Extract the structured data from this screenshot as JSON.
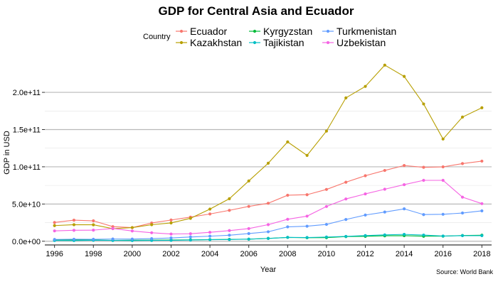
{
  "chart_data": {
    "type": "line",
    "title": "GDP for Central Asia and Ecuador",
    "xlabel": "Year",
    "ylabel": "GDP in USD",
    "caption": "Source: World Bank",
    "legend_title": "Country",
    "legend_position": "top",
    "grid": true,
    "xlim": [
      1995.5,
      2018.5
    ],
    "ylim": [
      -5000000000,
      243000000000
    ],
    "x_ticks": [
      1996,
      1998,
      2000,
      2002,
      2004,
      2006,
      2008,
      2010,
      2012,
      2014,
      2016,
      2018
    ],
    "x_tick_labels": [
      "1996",
      "1998",
      "2000",
      "2002",
      "2004",
      "2006",
      "2008",
      "2010",
      "2012",
      "2014",
      "2016",
      "2018"
    ],
    "y_ticks": [
      0,
      50000000000,
      100000000000,
      150000000000,
      200000000000
    ],
    "y_tick_labels": [
      "0.0e+00",
      "5.0e+10",
      "1.0e+11",
      "1.5e+11",
      "2.0e+11"
    ],
    "x": [
      1996,
      1997,
      1998,
      1999,
      2000,
      2001,
      2002,
      2003,
      2004,
      2005,
      2006,
      2007,
      2008,
      2009,
      2010,
      2011,
      2012,
      2013,
      2014,
      2015,
      2016,
      2017,
      2018
    ],
    "series": [
      {
        "name": "Ecuador",
        "color": "#F8766D",
        "values": [
          25200000000,
          28300000000,
          27400000000,
          19600000000,
          18300000000,
          24500000000,
          28500000000,
          32400000000,
          36600000000,
          41500000000,
          46800000000,
          51000000000,
          61800000000,
          62500000000,
          69600000000,
          79300000000,
          88000000000,
          95100000000,
          101700000000,
          99300000000,
          99900000000,
          104300000000,
          107600000000
        ]
      },
      {
        "name": "Kazakhstan",
        "color": "#B79F00",
        "values": [
          21000000000,
          22200000000,
          22100000000,
          16900000000,
          18300000000,
          22200000000,
          24600000000,
          30800000000,
          43200000000,
          57100000000,
          81000000000,
          104800000000,
          133400000000,
          115300000000,
          148000000000,
          192600000000,
          208000000000,
          236600000000,
          221400000000,
          184400000000,
          137300000000,
          166800000000,
          179300000000
        ]
      },
      {
        "name": "Kyrgyzstan",
        "color": "#00BA38",
        "values": [
          1800000000,
          1800000000,
          1600000000,
          1200000000,
          1400000000,
          1500000000,
          1600000000,
          1900000000,
          2200000000,
          2500000000,
          2800000000,
          3800000000,
          5100000000,
          4700000000,
          4800000000,
          6200000000,
          6600000000,
          7300000000,
          7500000000,
          6700000000,
          6800000000,
          7700000000,
          8100000000
        ]
      },
      {
        "name": "Tajikistan",
        "color": "#00BFC4",
        "values": [
          1000000000,
          900000000,
          1300000000,
          1100000000,
          900000000,
          1100000000,
          1200000000,
          1600000000,
          2100000000,
          2300000000,
          2800000000,
          3700000000,
          5200000000,
          5000000000,
          5600000000,
          6500000000,
          7600000000,
          8500000000,
          9200000000,
          8300000000,
          7000000000,
          7500000000,
          7500000000
        ]
      },
      {
        "name": "Turkmenistan",
        "color": "#619CFF",
        "values": [
          2400000000,
          2700000000,
          2600000000,
          3000000000,
          2900000000,
          3500000000,
          4400000000,
          5700000000,
          6800000000,
          8100000000,
          10300000000,
          12700000000,
          19300000000,
          20200000000,
          22600000000,
          29200000000,
          35200000000,
          39200000000,
          43500000000,
          35800000000,
          36200000000,
          37900000000,
          40800000000
        ]
      },
      {
        "name": "Uzbekistan",
        "color": "#F564E3",
        "values": [
          13900000000,
          14700000000,
          14900000000,
          17100000000,
          13800000000,
          11400000000,
          9700000000,
          10100000000,
          12000000000,
          14300000000,
          17000000000,
          22300000000,
          29500000000,
          33700000000,
          46700000000,
          56800000000,
          63600000000,
          69900000000,
          76000000000,
          81800000000,
          81800000000,
          59200000000,
          50500000000
        ]
      }
    ]
  }
}
